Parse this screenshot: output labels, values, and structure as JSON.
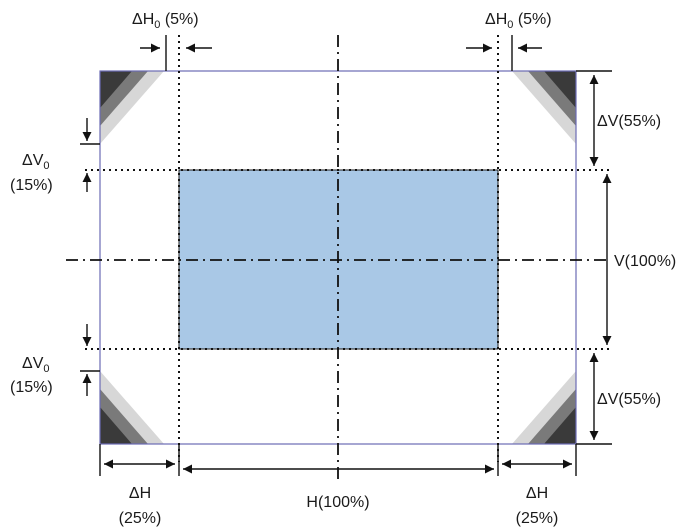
{
  "labels": {
    "dh0_left": {
      "main": "ΔH",
      "sub": "0",
      "tail": " (5%)"
    },
    "dh0_right": {
      "main": "ΔH",
      "sub": "0",
      "tail": " (5%)"
    },
    "dv_top": "ΔV(55%)",
    "dv0_top": {
      "main": "ΔV",
      "sub": "0",
      "tail": "(15%)"
    },
    "v100": "V(100%)",
    "dv0_bottom": {
      "main": "ΔV",
      "sub": "0",
      "tail": "(15%)"
    },
    "dv_bottom": "ΔV(55%)",
    "dh_left": {
      "line1": "ΔH",
      "line2": "(25%)"
    },
    "h100": "H(100%)",
    "dh_right": {
      "line1": "ΔH",
      "line2": "(25%)"
    }
  },
  "colors": {
    "image_fill": "#a9c8e6",
    "frame_stroke": "#6b6bb5",
    "line": "#111111",
    "corner_dark": "#3a3a3a",
    "corner_mid": "#7a7a7a",
    "corner_light": "#d7d7d7"
  }
}
